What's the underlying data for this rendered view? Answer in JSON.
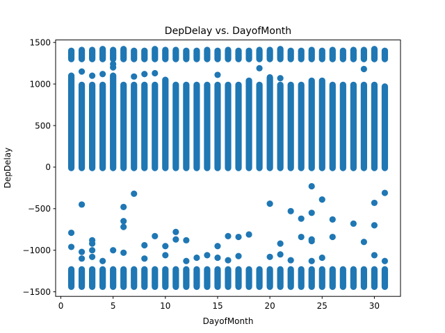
{
  "chart_data": {
    "type": "scatter",
    "title": "DepDelay vs. DayofMonth",
    "xlabel": "DayofMonth",
    "ylabel": "DepDelay",
    "xlim": [
      -0.5,
      32.5
    ],
    "ylim": [
      -1555,
      1530
    ],
    "xticks": [
      0,
      5,
      10,
      15,
      20,
      25,
      30
    ],
    "yticks": [
      -1500,
      -1000,
      -500,
      0,
      500,
      1000,
      1500
    ],
    "grid": false,
    "marker_color": "#1f77b4",
    "series": [
      {
        "bands": [
          {
            "day": 1,
            "ranges": [
              [
                -1440,
                -1230
              ],
              [
                -10,
                1100
              ],
              [
                1300,
                1400
              ]
            ]
          },
          {
            "day": 2,
            "ranges": [
              [
                -1440,
                -1230
              ],
              [
                -10,
                990
              ],
              [
                1300,
                1410
              ]
            ]
          },
          {
            "day": 3,
            "ranges": [
              [
                -1440,
                -1230
              ],
              [
                -10,
                990
              ],
              [
                1300,
                1410
              ]
            ]
          },
          {
            "day": 4,
            "ranges": [
              [
                -1440,
                -1230
              ],
              [
                -10,
                990
              ],
              [
                1300,
                1420
              ]
            ]
          },
          {
            "day": 5,
            "ranges": [
              [
                -1440,
                -1230
              ],
              [
                -10,
                1100
              ],
              [
                1300,
                1410
              ]
            ]
          },
          {
            "day": 6,
            "ranges": [
              [
                -1440,
                -1230
              ],
              [
                -10,
                990
              ],
              [
                1300,
                1420
              ]
            ]
          },
          {
            "day": 7,
            "ranges": [
              [
                -1440,
                -1230
              ],
              [
                -10,
                990
              ],
              [
                1300,
                1400
              ]
            ]
          },
          {
            "day": 8,
            "ranges": [
              [
                -1440,
                -1230
              ],
              [
                -10,
                990
              ],
              [
                1300,
                1400
              ]
            ]
          },
          {
            "day": 9,
            "ranges": [
              [
                -1440,
                -1230
              ],
              [
                -10,
                990
              ],
              [
                1300,
                1420
              ]
            ]
          },
          {
            "day": 10,
            "ranges": [
              [
                -1440,
                -1230
              ],
              [
                -10,
                1050
              ],
              [
                1300,
                1410
              ]
            ]
          },
          {
            "day": 11,
            "ranges": [
              [
                -1440,
                -1230
              ],
              [
                -10,
                990
              ],
              [
                1300,
                1410
              ]
            ]
          },
          {
            "day": 12,
            "ranges": [
              [
                -1440,
                -1230
              ],
              [
                -10,
                990
              ],
              [
                1300,
                1400
              ]
            ]
          },
          {
            "day": 13,
            "ranges": [
              [
                -1440,
                -1230
              ],
              [
                -10,
                990
              ],
              [
                1300,
                1400
              ]
            ]
          },
          {
            "day": 14,
            "ranges": [
              [
                -1440,
                -1230
              ],
              [
                -10,
                990
              ],
              [
                1300,
                1410
              ]
            ]
          },
          {
            "day": 15,
            "ranges": [
              [
                -1440,
                -1230
              ],
              [
                -10,
                990
              ],
              [
                1300,
                1400
              ]
            ]
          },
          {
            "day": 16,
            "ranges": [
              [
                -1440,
                -1230
              ],
              [
                -10,
                990
              ],
              [
                1300,
                1410
              ]
            ]
          },
          {
            "day": 17,
            "ranges": [
              [
                -1440,
                -1230
              ],
              [
                -10,
                990
              ],
              [
                1300,
                1400
              ]
            ]
          },
          {
            "day": 18,
            "ranges": [
              [
                -1440,
                -1230
              ],
              [
                -10,
                1040
              ],
              [
                1300,
                1400
              ]
            ]
          },
          {
            "day": 19,
            "ranges": [
              [
                -1440,
                -1230
              ],
              [
                -10,
                990
              ],
              [
                1300,
                1410
              ]
            ]
          },
          {
            "day": 20,
            "ranges": [
              [
                -1440,
                -1230
              ],
              [
                -10,
                1080
              ],
              [
                1300,
                1410
              ]
            ]
          },
          {
            "day": 21,
            "ranges": [
              [
                -1440,
                -1230
              ],
              [
                -10,
                990
              ],
              [
                1300,
                1420
              ]
            ]
          },
          {
            "day": 22,
            "ranges": [
              [
                -1440,
                -1230
              ],
              [
                -10,
                990
              ],
              [
                1300,
                1400
              ]
            ]
          },
          {
            "day": 23,
            "ranges": [
              [
                -1440,
                -1230
              ],
              [
                -10,
                990
              ],
              [
                1300,
                1400
              ]
            ]
          },
          {
            "day": 24,
            "ranges": [
              [
                -1440,
                -1230
              ],
              [
                -10,
                1040
              ],
              [
                1300,
                1410
              ]
            ]
          },
          {
            "day": 25,
            "ranges": [
              [
                -1440,
                -1230
              ],
              [
                -10,
                1040
              ],
              [
                1300,
                1400
              ]
            ]
          },
          {
            "day": 26,
            "ranges": [
              [
                -1440,
                -1230
              ],
              [
                -10,
                990
              ],
              [
                1300,
                1410
              ]
            ]
          },
          {
            "day": 27,
            "ranges": [
              [
                -1440,
                -1230
              ],
              [
                -10,
                990
              ],
              [
                1300,
                1400
              ]
            ]
          },
          {
            "day": 28,
            "ranges": [
              [
                -1440,
                -1230
              ],
              [
                -10,
                990
              ],
              [
                1300,
                1410
              ]
            ]
          },
          {
            "day": 29,
            "ranges": [
              [
                -1440,
                -1230
              ],
              [
                -10,
                990
              ],
              [
                1300,
                1410
              ]
            ]
          },
          {
            "day": 30,
            "ranges": [
              [
                -1440,
                -1230
              ],
              [
                -10,
                990
              ],
              [
                1300,
                1420
              ]
            ]
          },
          {
            "day": 31,
            "ranges": [
              [
                -1440,
                -1230
              ],
              [
                -10,
                970
              ],
              [
                1300,
                1400
              ]
            ]
          }
        ],
        "points": [
          [
            1,
            -790
          ],
          [
            1,
            -960
          ],
          [
            2,
            1150
          ],
          [
            2,
            -450
          ],
          [
            2,
            -1020
          ],
          [
            2,
            -1100
          ],
          [
            3,
            1100
          ],
          [
            3,
            -880
          ],
          [
            3,
            -920
          ],
          [
            3,
            -1000
          ],
          [
            3,
            -1080
          ],
          [
            4,
            1120
          ],
          [
            4,
            -1130
          ],
          [
            5,
            1200
          ],
          [
            5,
            1240
          ],
          [
            5,
            -1000
          ],
          [
            6,
            -480
          ],
          [
            6,
            -650
          ],
          [
            6,
            -720
          ],
          [
            6,
            -1030
          ],
          [
            7,
            -320
          ],
          [
            7,
            1090
          ],
          [
            8,
            1120
          ],
          [
            8,
            -940
          ],
          [
            8,
            -1100
          ],
          [
            9,
            1130
          ],
          [
            9,
            -830
          ],
          [
            10,
            -950
          ],
          [
            10,
            -1060
          ],
          [
            11,
            -780
          ],
          [
            11,
            -870
          ],
          [
            12,
            -880
          ],
          [
            12,
            -1130
          ],
          [
            13,
            -1090
          ],
          [
            14,
            -1060
          ],
          [
            15,
            1110
          ],
          [
            15,
            -950
          ],
          [
            15,
            -1090
          ],
          [
            16,
            -830
          ],
          [
            16,
            -1120
          ],
          [
            17,
            -840
          ],
          [
            17,
            -1070
          ],
          [
            18,
            -810
          ],
          [
            19,
            1190
          ],
          [
            20,
            -440
          ],
          [
            20,
            -1080
          ],
          [
            21,
            1070
          ],
          [
            21,
            -920
          ],
          [
            21,
            -1050
          ],
          [
            22,
            -530
          ],
          [
            22,
            -1120
          ],
          [
            23,
            -620
          ],
          [
            23,
            -840
          ],
          [
            24,
            -230
          ],
          [
            24,
            -550
          ],
          [
            24,
            -870
          ],
          [
            24,
            -890
          ],
          [
            24,
            -1130
          ],
          [
            25,
            -390
          ],
          [
            25,
            -1090
          ],
          [
            26,
            -630
          ],
          [
            26,
            -840
          ],
          [
            28,
            -680
          ],
          [
            29,
            1180
          ],
          [
            29,
            -900
          ],
          [
            30,
            -430
          ],
          [
            30,
            -700
          ],
          [
            30,
            -1060
          ],
          [
            31,
            -310
          ],
          [
            31,
            -1130
          ]
        ]
      }
    ]
  }
}
